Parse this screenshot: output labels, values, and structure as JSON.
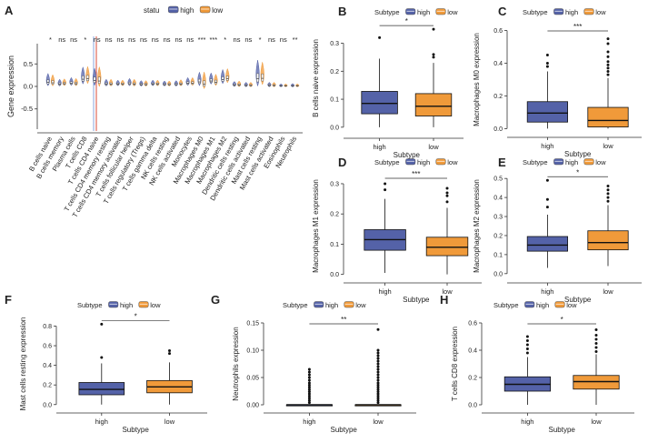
{
  "colors": {
    "high": "#5462a8",
    "low": "#f09a3a",
    "ink": "#222222",
    "axis": "#333333",
    "median": "#111111"
  },
  "chart_data": [
    {
      "id": "A",
      "type": "violin+box",
      "panel_letter": "A",
      "legend_title": "statu",
      "legend_labels": [
        "high",
        "low"
      ],
      "ylabel": "Gene expression",
      "yticks": [
        -0.5,
        0.0,
        0.5
      ],
      "ylim": [
        -0.95,
        0.95
      ],
      "tick_labels": [
        "-0.5",
        "0.0",
        "0.5"
      ],
      "categories": [
        "B cells naive",
        "B cells memory",
        "Plasma cells",
        "T cells CD8",
        "T cells CD4 naive",
        "T cells CD4 memory resting",
        "T cells CD4 memory activated",
        "T cells follicular helper",
        "T cells regulatory (Tregs)",
        "T cells gamma delta",
        "NK cells resting",
        "NK cells activated",
        "Monocytes",
        "Macrophages M0",
        "Macrophages M1",
        "Macrophages M2",
        "Dendritic cells resting",
        "Dendritic cells activated",
        "Mast cells resting",
        "Mast cells activated",
        "Eosinophils",
        "Neutrophils"
      ],
      "significance": [
        "*",
        "ns",
        "ns",
        "*",
        "ns",
        "ns",
        "ns",
        "ns",
        "ns",
        "ns",
        "ns",
        "ns",
        "ns",
        "***",
        "***",
        "*",
        "ns",
        "ns",
        "*",
        "ns",
        "ns",
        "**"
      ],
      "series": [
        {
          "name": "high",
          "medians": [
            0.09,
            0.05,
            0.07,
            0.16,
            0.13,
            0.05,
            0.05,
            0.06,
            0.04,
            0.05,
            0.04,
            0.04,
            0.07,
            0.1,
            0.12,
            0.15,
            0.03,
            0.02,
            0.17,
            0.02,
            0.01,
            0.01
          ],
          "spreads": [
            0.22,
            0.12,
            0.14,
            0.3,
            0.3,
            0.12,
            0.1,
            0.13,
            0.1,
            0.1,
            0.09,
            0.1,
            0.14,
            0.24,
            0.2,
            0.25,
            0.09,
            0.08,
            0.46,
            0.08,
            0.05,
            0.06
          ]
        },
        {
          "name": "low",
          "medians": [
            0.08,
            0.06,
            0.06,
            0.17,
            0.12,
            0.05,
            0.05,
            0.05,
            0.04,
            0.05,
            0.04,
            0.05,
            0.07,
            0.05,
            0.09,
            0.17,
            0.03,
            0.02,
            0.18,
            0.02,
            0.01,
            0.01
          ],
          "spreads": [
            0.2,
            0.12,
            0.13,
            0.3,
            0.35,
            0.12,
            0.1,
            0.12,
            0.1,
            0.1,
            0.09,
            0.11,
            0.14,
            0.3,
            0.2,
            0.25,
            0.1,
            0.08,
            0.4,
            0.08,
            0.05,
            0.05
          ]
        }
      ]
    },
    {
      "id": "B",
      "type": "box",
      "panel_letter": "B",
      "legend_title": "Subtype",
      "legend_labels": [
        "high",
        "low"
      ],
      "ylabel": "B cells naive expression",
      "xlabel": "Subtype",
      "categories": [
        "high",
        "low"
      ],
      "yticks": [
        0.0,
        0.1,
        0.2,
        0.3
      ],
      "tick_labels": [
        "0.0",
        "0.1",
        "0.2",
        "0.3"
      ],
      "ylim": [
        -0.02,
        0.37
      ],
      "significance": "*",
      "boxes": [
        {
          "q1": 0.048,
          "median": 0.085,
          "q3": 0.128,
          "wlo": 0.0,
          "whi": 0.245,
          "outliers": [
            0.32
          ]
        },
        {
          "q1": 0.04,
          "median": 0.075,
          "q3": 0.12,
          "wlo": 0.0,
          "whi": 0.23,
          "outliers": [
            0.25,
            0.26,
            0.35
          ]
        }
      ]
    },
    {
      "id": "C",
      "type": "box",
      "panel_letter": "C",
      "legend_title": "Subtype",
      "legend_labels": [
        "high",
        "low"
      ],
      "ylabel": "Macrophages M0 expression",
      "xlabel": "Subtype",
      "categories": [
        "high",
        "low"
      ],
      "yticks": [
        0.0,
        0.2,
        0.4,
        0.6
      ],
      "tick_labels": [
        "0.0",
        "0.2",
        "0.4",
        "0.6"
      ],
      "ylim": [
        -0.02,
        0.62
      ],
      "significance": "***",
      "boxes": [
        {
          "q1": 0.04,
          "median": 0.095,
          "q3": 0.165,
          "wlo": 0.0,
          "whi": 0.35,
          "outliers": [
            0.38,
            0.4,
            0.45
          ]
        },
        {
          "q1": 0.01,
          "median": 0.05,
          "q3": 0.13,
          "wlo": 0.0,
          "whi": 0.31,
          "outliers": [
            0.33,
            0.35,
            0.37,
            0.39,
            0.41,
            0.44,
            0.47,
            0.52,
            0.55
          ]
        }
      ]
    },
    {
      "id": "D",
      "type": "box",
      "panel_letter": "D",
      "legend_title": "Subtype",
      "legend_labels": [
        "high",
        "low"
      ],
      "ylabel": "Macrophages M1 expression",
      "xlabel": "Subtype",
      "categories": [
        "high",
        "low"
      ],
      "yticks": [
        0.0,
        0.1,
        0.2,
        0.3
      ],
      "tick_labels": [
        "0.0",
        "0.1",
        "0.2",
        "0.3"
      ],
      "ylim": [
        -0.01,
        0.33
      ],
      "significance": "***",
      "boxes": [
        {
          "q1": 0.08,
          "median": 0.115,
          "q3": 0.148,
          "wlo": 0.005,
          "whi": 0.25,
          "outliers": [
            0.28,
            0.3
          ]
        },
        {
          "q1": 0.062,
          "median": 0.09,
          "q3": 0.123,
          "wlo": 0.0,
          "whi": 0.22,
          "outliers": [
            0.24,
            0.26,
            0.27,
            0.285
          ]
        }
      ]
    },
    {
      "id": "E",
      "type": "box",
      "panel_letter": "E",
      "legend_title": "Subtype",
      "legend_labels": [
        "high",
        "low"
      ],
      "ylabel": "Macrophages M2 expression",
      "xlabel": "Subtype",
      "categories": [
        "high",
        "low"
      ],
      "yticks": [
        0.0,
        0.1,
        0.2,
        0.3,
        0.4,
        0.5
      ],
      "tick_labels": [
        "0.0",
        "0.1",
        "0.2",
        "0.3",
        "0.4",
        "0.5"
      ],
      "ylim": [
        -0.02,
        0.52
      ],
      "significance": "*",
      "boxes": [
        {
          "q1": 0.118,
          "median": 0.15,
          "q3": 0.195,
          "wlo": 0.03,
          "whi": 0.31,
          "outliers": [
            0.35,
            0.39,
            0.49
          ]
        },
        {
          "q1": 0.125,
          "median": 0.163,
          "q3": 0.225,
          "wlo": 0.04,
          "whi": 0.36,
          "outliers": [
            0.38,
            0.4,
            0.42,
            0.44,
            0.46
          ]
        }
      ]
    },
    {
      "id": "F",
      "type": "box",
      "panel_letter": "F",
      "legend_title": "Subtype",
      "legend_labels": [
        "high",
        "low"
      ],
      "ylabel": "Mast cells resting expression",
      "xlabel": "Subtype",
      "categories": [
        "high",
        "low"
      ],
      "yticks": [
        0.0,
        0.2,
        0.4,
        0.6,
        0.8
      ],
      "tick_labels": [
        "0.0",
        "0.2",
        "0.4",
        "0.6",
        "0.8"
      ],
      "ylim": [
        -0.03,
        0.86
      ],
      "significance": "*",
      "boxes": [
        {
          "q1": 0.1,
          "median": 0.155,
          "q3": 0.225,
          "wlo": 0.0,
          "whi": 0.42,
          "outliers": [
            0.48,
            0.82
          ]
        },
        {
          "q1": 0.12,
          "median": 0.18,
          "q3": 0.245,
          "wlo": 0.0,
          "whi": 0.43,
          "outliers": [
            0.52,
            0.55
          ]
        }
      ]
    },
    {
      "id": "G",
      "type": "box",
      "panel_letter": "G",
      "legend_title": "Subtype",
      "legend_labels": [
        "high",
        "low"
      ],
      "ylabel": "Neutrophils expression",
      "xlabel": "Subtype",
      "categories": [
        "high",
        "low"
      ],
      "yticks": [
        0.0,
        0.05,
        0.1,
        0.15
      ],
      "tick_labels": [
        "0.00",
        "0.05",
        "0.10",
        "0.15"
      ],
      "ylim": [
        -0.005,
        0.155
      ],
      "significance": "**",
      "boxes": [
        {
          "q1": 0.0,
          "median": 0.0,
          "q3": 0.0,
          "wlo": 0.0,
          "whi": 0.0,
          "outliers": [
            0.004,
            0.008,
            0.012,
            0.016,
            0.02,
            0.024,
            0.028,
            0.032,
            0.036,
            0.04,
            0.045,
            0.05,
            0.055,
            0.06,
            0.065
          ]
        },
        {
          "q1": 0.0,
          "median": 0.0,
          "q3": 0.0,
          "wlo": 0.0,
          "whi": 0.0,
          "outliers": [
            0.004,
            0.008,
            0.012,
            0.016,
            0.02,
            0.024,
            0.028,
            0.032,
            0.036,
            0.04,
            0.045,
            0.05,
            0.055,
            0.06,
            0.065,
            0.07,
            0.075,
            0.08,
            0.085,
            0.09,
            0.095,
            0.1,
            0.138
          ]
        }
      ]
    },
    {
      "id": "H",
      "type": "box",
      "panel_letter": "H",
      "legend_title": "Subtype",
      "legend_labels": [
        "high",
        "low"
      ],
      "ylabel": "T cells CD8 expression",
      "xlabel": "Subtype",
      "categories": [
        "high",
        "low"
      ],
      "yticks": [
        0.0,
        0.2,
        0.4,
        0.6
      ],
      "tick_labels": [
        "0.0",
        "0.2",
        "0.4",
        "0.6"
      ],
      "ylim": [
        -0.02,
        0.62
      ],
      "significance": "*",
      "boxes": [
        {
          "q1": 0.1,
          "median": 0.15,
          "q3": 0.205,
          "wlo": 0.0,
          "whi": 0.35,
          "outliers": [
            0.38,
            0.41,
            0.44,
            0.47,
            0.5
          ]
        },
        {
          "q1": 0.115,
          "median": 0.17,
          "q3": 0.215,
          "wlo": 0.0,
          "whi": 0.37,
          "outliers": [
            0.39,
            0.42,
            0.45,
            0.48,
            0.51,
            0.55
          ]
        }
      ]
    }
  ]
}
